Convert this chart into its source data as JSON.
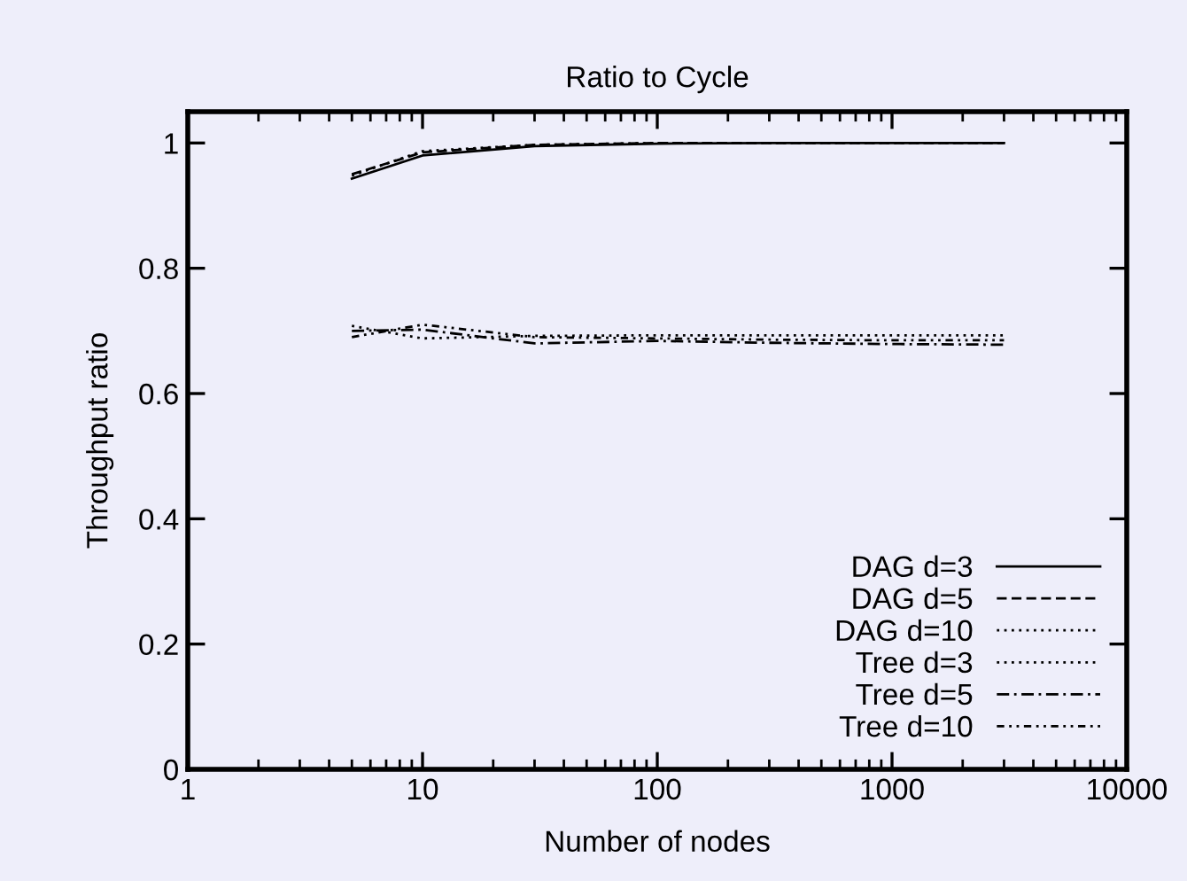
{
  "chart_data": {
    "type": "line",
    "title": "Ratio to Cycle",
    "xlabel": "Number of nodes",
    "ylabel": "Throughput ratio",
    "log": "x",
    "xlim": [
      1,
      10000
    ],
    "xticks": [
      1,
      10,
      100,
      1000,
      10000
    ],
    "ylim": [
      0,
      1.05
    ],
    "yticks": [
      0,
      0.2,
      0.4,
      0.6,
      0.8,
      1
    ],
    "x": [
      5,
      10,
      30,
      100,
      300,
      1000,
      3000
    ],
    "grid": false,
    "legend": "bottom right",
    "marker": "none",
    "series": [
      {
        "name": "DAG d=3",
        "color": "#000000",
        "line_style": "solid",
        "values": [
          0.943,
          0.98,
          0.995,
          0.999,
          1.0,
          1.0,
          1.0
        ]
      },
      {
        "name": "DAG d=5",
        "color": "#000000",
        "line_style": "dashed",
        "values": [
          0.95,
          0.985,
          0.997,
          1.0,
          1.0,
          1.0,
          1.0
        ]
      },
      {
        "name": "DAG d=10",
        "color": "#000000",
        "line_style": "dotted",
        "values": [
          0.948,
          0.987,
          0.997,
          1.0,
          1.0,
          1.0,
          1.0
        ]
      },
      {
        "name": "Tree d=3",
        "color": "#000000",
        "line_style": "dotted",
        "values": [
          0.708,
          0.688,
          0.692,
          0.693,
          0.693,
          0.693,
          0.693
        ]
      },
      {
        "name": "Tree d=5",
        "color": "#000000",
        "line_style": "dashdot",
        "values": [
          0.7,
          0.702,
          0.68,
          0.684,
          0.681,
          0.679,
          0.678
        ]
      },
      {
        "name": "Tree d=10",
        "color": "#000000",
        "line_style": "dashdotdot",
        "values": [
          0.69,
          0.71,
          0.69,
          0.688,
          0.686,
          0.685,
          0.685
        ]
      }
    ]
  }
}
